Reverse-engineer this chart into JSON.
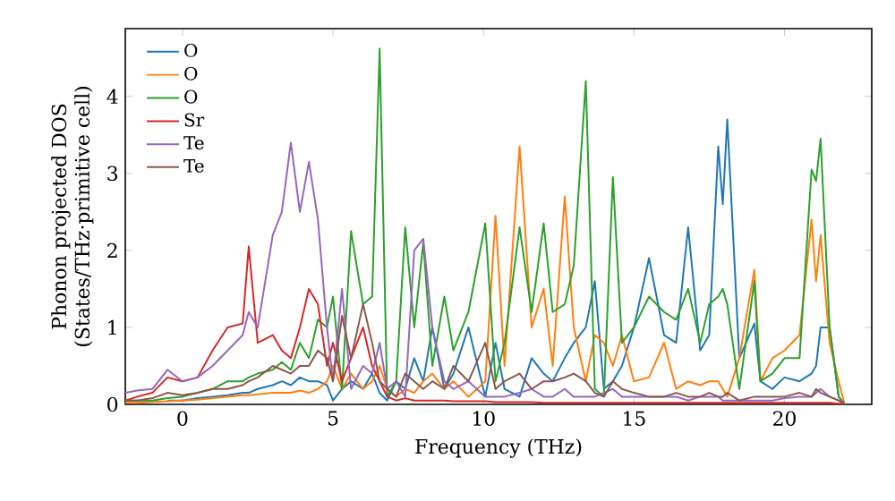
{
  "chart_data": {
    "type": "line",
    "xlabel": "Frequency (THz)",
    "ylabel": "Phonon projected DOS\n(States/THz·primitive cell)",
    "xlim": [
      -1.9,
      22.9
    ],
    "ylim": [
      0,
      4.88
    ],
    "xticks": [
      0,
      5,
      10,
      15,
      20
    ],
    "yticks": [
      0,
      1,
      2,
      3,
      4
    ],
    "legend": "top left",
    "grid": false,
    "marker": "none",
    "line_style": "solid",
    "x": [
      -1.9,
      -1.5,
      -1,
      -0.5,
      0,
      0.5,
      1,
      1.5,
      2,
      2.2,
      2.5,
      3,
      3.3,
      3.6,
      3.9,
      4.2,
      4.5,
      4.8,
      5,
      5.3,
      5.6,
      6,
      6.3,
      6.55,
      6.8,
      7.1,
      7.4,
      7.7,
      8,
      8.3,
      8.7,
      9,
      9.5,
      10.06,
      10.4,
      10.7,
      11.2,
      11.6,
      12,
      12.3,
      12.7,
      13,
      13.4,
      13.7,
      14,
      14.3,
      14.6,
      15,
      15.5,
      16,
      16.4,
      16.8,
      17.2,
      17.5,
      17.8,
      17.95,
      18.1,
      18.5,
      19,
      19.2,
      19.6,
      20,
      20.5,
      20.9,
      21.05,
      21.2,
      21.5,
      21.8,
      22
    ],
    "series": [
      {
        "name": "O",
        "color": "#1f77b4",
        "values": [
          null,
          null,
          null,
          0.05,
          0.05,
          0.08,
          0.1,
          0.12,
          0.15,
          0.15,
          0.2,
          0.25,
          0.3,
          0.25,
          0.35,
          0.3,
          0.3,
          0.25,
          0.05,
          0.2,
          0.3,
          0.2,
          0.4,
          0.15,
          0.05,
          0.3,
          0.2,
          0.6,
          0.3,
          1.0,
          0.2,
          0.4,
          1.0,
          0.1,
          0.8,
          0.2,
          0.1,
          0.6,
          0.4,
          0.3,
          0.6,
          0.8,
          1.0,
          1.6,
          0.2,
          0.3,
          0.5,
          1.0,
          1.9,
          0.9,
          0.8,
          2.3,
          0.7,
          0.9,
          3.35,
          2.6,
          3.7,
          0.6,
          1.05,
          0.3,
          0.2,
          0.35,
          0.3,
          0.4,
          0.5,
          1.0,
          1.0,
          0.1,
          0
        ]
      },
      {
        "name": "O",
        "color": "#ff7f0e",
        "values": [
          0.02,
          0.02,
          0.03,
          0.04,
          0.05,
          0.06,
          0.08,
          0.1,
          0.12,
          0.12,
          0.13,
          0.15,
          0.15,
          0.15,
          0.18,
          0.15,
          0.2,
          0.3,
          0.5,
          0.2,
          0.4,
          0.2,
          0.3,
          0.5,
          0.2,
          0.1,
          0.2,
          0.15,
          0.3,
          0.4,
          0.2,
          0.3,
          0.1,
          0.3,
          2.45,
          0.5,
          3.35,
          1.0,
          1.5,
          0.5,
          2.7,
          1.0,
          0.3,
          0.9,
          0.8,
          0.5,
          0.9,
          0.3,
          0.35,
          0.8,
          0.2,
          0.3,
          0.25,
          0.3,
          0.3,
          0.2,
          0.1,
          0.6,
          1.75,
          0.3,
          0.6,
          0.7,
          0.9,
          2.4,
          1.6,
          2.2,
          0.8,
          0.3,
          0
        ]
      },
      {
        "name": "O",
        "color": "#2ca02c",
        "values": [
          0.05,
          0.05,
          0.05,
          0.08,
          0.1,
          0.15,
          0.2,
          0.3,
          0.3,
          0.35,
          0.4,
          0.45,
          0.55,
          0.45,
          0.8,
          0.6,
          1.1,
          1.0,
          1.4,
          0.2,
          2.25,
          1.3,
          1.4,
          4.62,
          0.1,
          0.3,
          2.3,
          1.0,
          2.1,
          0.5,
          1.4,
          0.7,
          1.2,
          2.35,
          0.3,
          0.8,
          2.3,
          1.2,
          2.35,
          1.2,
          1.3,
          1.8,
          4.2,
          0.2,
          0.1,
          2.95,
          0.8,
          1.0,
          1.4,
          1.2,
          1.1,
          1.5,
          0.8,
          1.3,
          1.4,
          1.5,
          1.3,
          0.2,
          1.6,
          0.3,
          0.4,
          0.6,
          0.6,
          3.05,
          2.9,
          3.45,
          1.0,
          0.1,
          0
        ]
      },
      {
        "name": "Sr",
        "color": "#d62728",
        "values": [
          0.05,
          0.1,
          0.15,
          0.35,
          0.3,
          0.35,
          0.7,
          1.0,
          1.05,
          2.05,
          0.8,
          0.9,
          0.7,
          0.6,
          1.0,
          1.5,
          1.3,
          0.5,
          0.8,
          0.3,
          0.6,
          1.0,
          0.5,
          0.3,
          0.1,
          0.05,
          0.08,
          0.05,
          0.05,
          0.05,
          0.05,
          0.04,
          0.04,
          0.04,
          0.03,
          0.03,
          0.03,
          0.03,
          0.02,
          0.02,
          0.02,
          0.02,
          0.02,
          0.02,
          0.02,
          0.02,
          0.02,
          0.02,
          0.02,
          0.02,
          0.02,
          0.02,
          0.02,
          0.02,
          0.02,
          0.02,
          0.02,
          0.02,
          0.02,
          0.02,
          0.02,
          0.02,
          0.02,
          0.02,
          0.02,
          0.02,
          0.02,
          0.01,
          0
        ]
      },
      {
        "name": "Te",
        "color": "#9467bd",
        "values": [
          0.15,
          0.18,
          0.2,
          0.45,
          0.3,
          0.35,
          0.5,
          0.7,
          0.9,
          1.2,
          1.0,
          2.2,
          2.5,
          3.4,
          2.5,
          3.15,
          2.4,
          1.0,
          0.3,
          1.5,
          0.2,
          0.5,
          0.4,
          0.8,
          0.2,
          0.3,
          0.1,
          2.0,
          2.15,
          1.0,
          0.3,
          0.2,
          0.3,
          0.1,
          0.1,
          0.1,
          0.15,
          0.2,
          0.1,
          0.1,
          0.2,
          0.1,
          0.1,
          0.1,
          0.15,
          0.2,
          0.1,
          0.1,
          0.1,
          0.1,
          0.1,
          0.05,
          0.1,
          0.1,
          0.1,
          0.05,
          0.05,
          0.05,
          0.05,
          0.05,
          0.05,
          0.08,
          0.1,
          0.1,
          0.15,
          0.2,
          0.1,
          0.05,
          0
        ]
      },
      {
        "name": "Te",
        "color": "#8c564b",
        "values": [
          0.05,
          0.05,
          0.08,
          0.15,
          0.12,
          0.15,
          0.2,
          0.2,
          0.25,
          0.3,
          0.35,
          0.5,
          0.45,
          0.4,
          0.5,
          0.5,
          0.7,
          0.6,
          0.3,
          1.15,
          0.6,
          1.3,
          0.8,
          0.3,
          0.2,
          0.1,
          0.4,
          0.3,
          0.2,
          0.3,
          0.2,
          0.5,
          0.3,
          0.8,
          0.2,
          0.3,
          0.4,
          0.2,
          0.3,
          0.3,
          0.35,
          0.4,
          0.3,
          0.15,
          0.1,
          0.3,
          0.2,
          0.15,
          0.1,
          0.1,
          0.15,
          0.1,
          0.1,
          0.15,
          0.1,
          0.1,
          0.15,
          0.05,
          0.1,
          0.1,
          0.1,
          0.1,
          0.15,
          0.1,
          0.2,
          0.15,
          0.1,
          0.05,
          0
        ]
      }
    ]
  }
}
